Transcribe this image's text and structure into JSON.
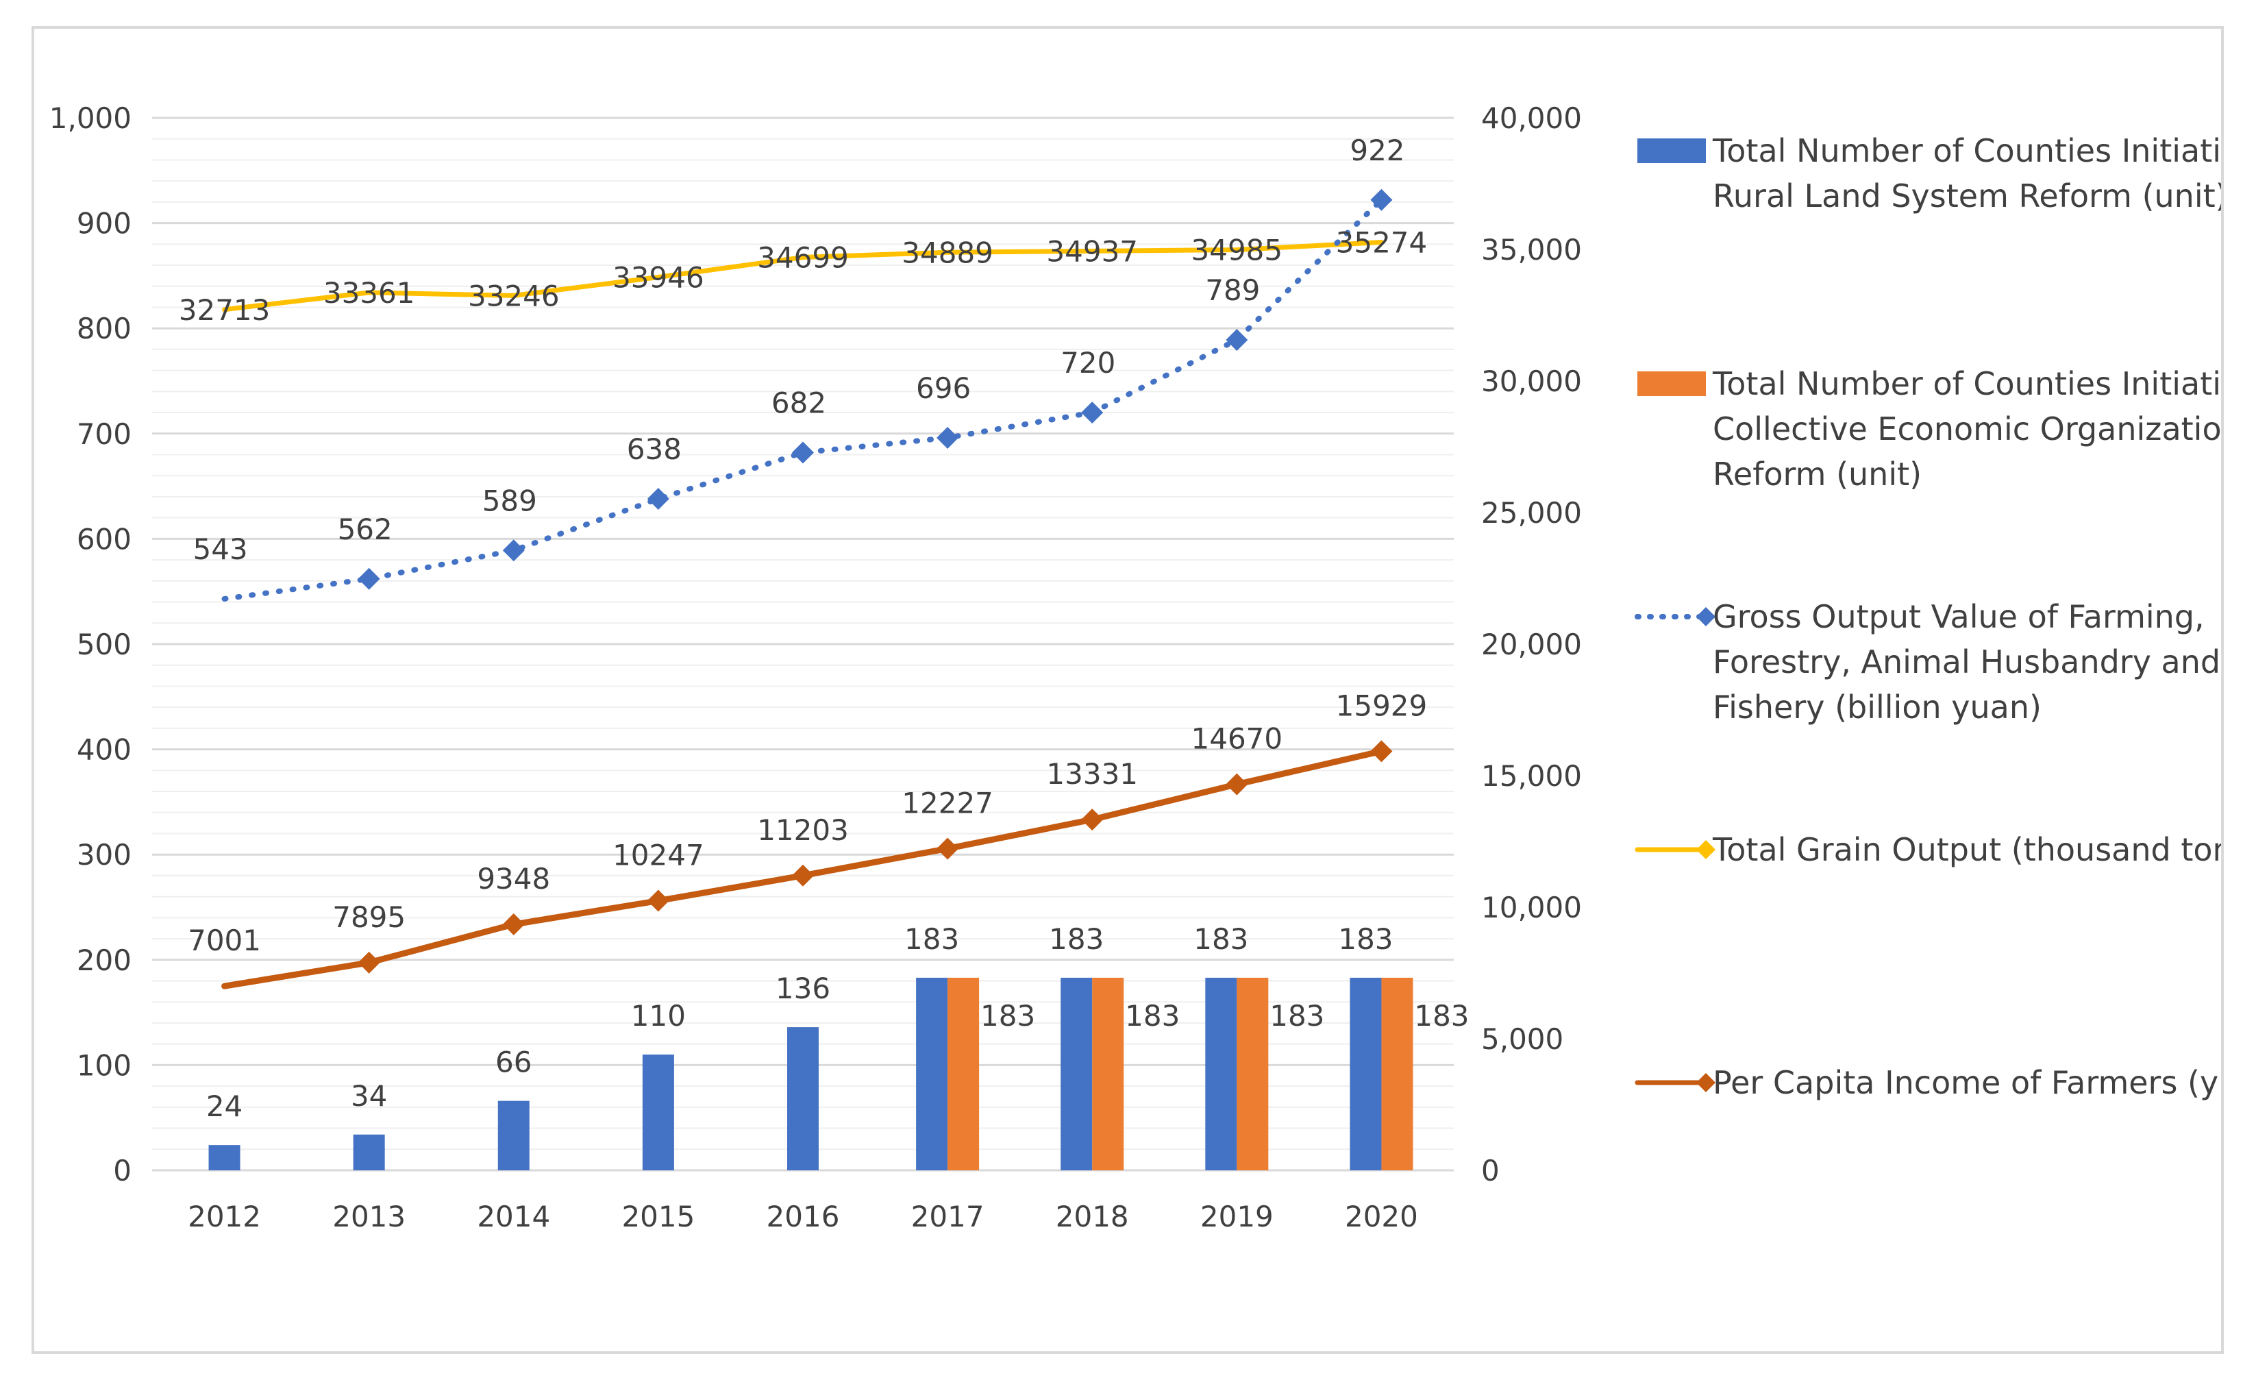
{
  "chart_data": {
    "type": "bar",
    "categories": [
      "2012",
      "2013",
      "2014",
      "2015",
      "2016",
      "2017",
      "2018",
      "2019",
      "2020"
    ],
    "left_axis": {
      "ylim": [
        0,
        1000
      ],
      "ticks": [
        "0",
        "100",
        "200",
        "300",
        "400",
        "500",
        "600",
        "700",
        "800",
        "900",
        "1,000"
      ]
    },
    "right_axis": {
      "ylim": [
        0,
        40000
      ],
      "ticks": [
        "0",
        "5,000",
        "10,000",
        "15,000",
        "20,000",
        "25,000",
        "30,000",
        "35,000",
        "40,000"
      ]
    },
    "series": [
      {
        "name": "Total Number of Counties Initiating Rural Land System Reform (unit)",
        "kind": "bar",
        "axis": "left",
        "color": "#4472c4",
        "values": [
          24,
          34,
          66,
          110,
          136,
          183,
          183,
          183,
          183
        ]
      },
      {
        "name": "Total Number of Counties Initiating Collective Economic Organization Reform (unit)",
        "kind": "bar",
        "axis": "left",
        "color": "#ed7d31",
        "values": [
          null,
          null,
          null,
          null,
          null,
          183,
          183,
          183,
          183
        ]
      },
      {
        "name": "Gross Output Value of Farming, Forestry, Animal Husbandry and Fishery (billion yuan)",
        "kind": "line-dotted",
        "axis": "left",
        "color": "#4472c4",
        "values": [
          543,
          562,
          589,
          638,
          682,
          696,
          720,
          789,
          922
        ]
      },
      {
        "name": "Total Grain Output (thousand tons)",
        "kind": "line",
        "axis": "right",
        "color": "#ffc000",
        "values": [
          32713,
          33361,
          33246,
          33946,
          34699,
          34889,
          34937,
          34985,
          35274
        ]
      },
      {
        "name": "Per Capita Income of Farmers (yuan)",
        "kind": "line",
        "axis": "right",
        "color": "#c55a11",
        "values": [
          7001,
          7895,
          9348,
          10247,
          11203,
          12227,
          13331,
          14670,
          15929
        ]
      }
    ],
    "legend": {
      "position": "right",
      "items": [
        [
          "Total Number of Counties Initiating",
          "Rural Land System Reform (unit)"
        ],
        [
          "Total Number of Counties Initiating",
          "Collective Economic Organization",
          "Reform (unit)"
        ],
        [
          "Gross Output Value of Farming,",
          "Forestry, Animal Husbandry and",
          "Fishery (billion yuan)"
        ],
        [
          "Total Grain Output (thousand tons)"
        ],
        [
          "Per Capita Income of Farmers (yuan)"
        ]
      ]
    },
    "grid": true
  }
}
